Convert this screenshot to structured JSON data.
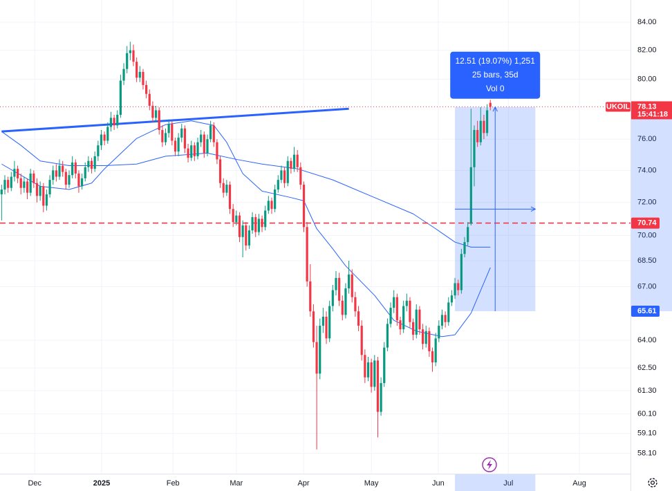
{
  "chart_data": {
    "type": "candlestick",
    "symbol": "UKOIL",
    "countdown": "15:41:18",
    "log_scale": true,
    "grid": true,
    "up_color": "#089981",
    "down_color": "#f23645",
    "xlim": [
      -0.5,
      195.6
    ],
    "xticks": [
      {
        "value": 10.3,
        "label": "Dec"
      },
      {
        "value": 31.1,
        "label": "2025",
        "bold": true
      },
      {
        "value": 53.3,
        "label": "Feb"
      },
      {
        "value": 73.0,
        "label": "Mar"
      },
      {
        "value": 93.9,
        "label": "Apr"
      },
      {
        "value": 115.0,
        "label": "May"
      },
      {
        "value": 135.8,
        "label": "Jun"
      },
      {
        "value": 157.6,
        "label": "Jul"
      },
      {
        "value": 179.7,
        "label": "Aug"
      }
    ],
    "ylim": [
      57.1,
      85.6
    ],
    "yticks": [
      {
        "value": 84,
        "label": "84.00"
      },
      {
        "value": 82,
        "label": "82.00"
      },
      {
        "value": 80,
        "label": "80.00"
      },
      {
        "value": 76,
        "label": "76.00"
      },
      {
        "value": 74,
        "label": "74.00"
      },
      {
        "value": 72,
        "label": "72.00"
      },
      {
        "value": 70,
        "label": "70.00"
      },
      {
        "value": 68.5,
        "label": "68.50"
      },
      {
        "value": 67,
        "label": "67.00"
      },
      {
        "value": 64,
        "label": "64.00"
      },
      {
        "value": 62.5,
        "label": "62.50"
      },
      {
        "value": 61.3,
        "label": "61.30"
      },
      {
        "value": 60.1,
        "label": "60.10"
      },
      {
        "value": 59.1,
        "label": "59.10"
      },
      {
        "value": 58.1,
        "label": "58.10"
      }
    ],
    "ohlc": [
      [
        72.5,
        73.1,
        70.9,
        72.8
      ],
      [
        72.8,
        73.7,
        72.5,
        73.4
      ],
      [
        73.4,
        73.6,
        72.6,
        72.9
      ],
      [
        72.9,
        73.9,
        72.7,
        73.6
      ],
      [
        73.6,
        74.6,
        73.3,
        74.1
      ],
      [
        74.1,
        74.3,
        73.2,
        73.5
      ],
      [
        73.5,
        73.8,
        72.5,
        72.9
      ],
      [
        72.9,
        73.6,
        72.6,
        73.3
      ],
      [
        73.3,
        73.5,
        72.2,
        72.6
      ],
      [
        72.6,
        74.1,
        72.4,
        73.8
      ],
      [
        73.8,
        74.0,
        72.9,
        73.2
      ],
      [
        73.2,
        73.5,
        72.0,
        72.4
      ],
      [
        72.4,
        73.3,
        72.1,
        73.0
      ],
      [
        73.0,
        73.2,
        71.4,
        71.8
      ],
      [
        71.8,
        72.8,
        71.5,
        72.5
      ],
      [
        72.5,
        73.7,
        72.3,
        73.4
      ],
      [
        73.4,
        74.3,
        73.1,
        74.0
      ],
      [
        74.0,
        74.4,
        73.3,
        73.6
      ],
      [
        73.6,
        74.7,
        73.4,
        74.3
      ],
      [
        74.3,
        74.6,
        73.6,
        73.9
      ],
      [
        73.9,
        74.1,
        72.8,
        73.1
      ],
      [
        73.1,
        74.0,
        72.9,
        73.7
      ],
      [
        73.7,
        74.9,
        73.5,
        74.5
      ],
      [
        74.5,
        74.7,
        73.5,
        73.8
      ],
      [
        73.8,
        74.0,
        72.6,
        73.0
      ],
      [
        73.0,
        73.8,
        72.8,
        73.5
      ],
      [
        73.5,
        74.5,
        73.3,
        74.2
      ],
      [
        74.2,
        74.9,
        73.9,
        74.6
      ],
      [
        74.6,
        74.8,
        73.8,
        74.1
      ],
      [
        74.1,
        75.2,
        73.9,
        74.9
      ],
      [
        74.9,
        75.9,
        74.6,
        75.6
      ],
      [
        75.6,
        76.6,
        75.3,
        76.3
      ],
      [
        76.3,
        76.5,
        75.6,
        75.9
      ],
      [
        75.9,
        77.1,
        75.7,
        76.8
      ],
      [
        76.8,
        77.8,
        76.5,
        77.4
      ],
      [
        77.4,
        77.6,
        76.6,
        76.9
      ],
      [
        76.9,
        77.9,
        76.7,
        77.6
      ],
      [
        77.6,
        80.3,
        77.4,
        79.9
      ],
      [
        79.9,
        81.1,
        79.6,
        80.7
      ],
      [
        80.7,
        82.3,
        80.4,
        81.8
      ],
      [
        81.8,
        82.6,
        81.3,
        82.0
      ],
      [
        82.0,
        82.4,
        80.9,
        81.2
      ],
      [
        81.2,
        81.5,
        79.8,
        80.1
      ],
      [
        80.1,
        80.9,
        79.8,
        80.5
      ],
      [
        80.5,
        80.7,
        79.3,
        79.6
      ],
      [
        79.6,
        79.9,
        78.7,
        79.0
      ],
      [
        79.0,
        79.3,
        77.9,
        78.2
      ],
      [
        78.2,
        78.5,
        77.1,
        77.4
      ],
      [
        77.4,
        78.2,
        77.1,
        77.9
      ],
      [
        77.9,
        78.1,
        76.3,
        76.6
      ],
      [
        76.6,
        76.9,
        75.5,
        75.8
      ],
      [
        75.8,
        76.7,
        75.6,
        76.4
      ],
      [
        76.4,
        77.3,
        76.1,
        77.0
      ],
      [
        77.0,
        77.2,
        75.6,
        75.9
      ],
      [
        75.9,
        76.1,
        74.9,
        75.2
      ],
      [
        75.2,
        76.4,
        74.9,
        76.1
      ],
      [
        76.1,
        77.0,
        75.8,
        76.7
      ],
      [
        76.7,
        76.9,
        75.1,
        75.4
      ],
      [
        75.4,
        75.7,
        74.5,
        74.8
      ],
      [
        74.8,
        75.9,
        74.6,
        75.6
      ],
      [
        75.6,
        75.8,
        74.6,
        74.9
      ],
      [
        74.9,
        76.1,
        74.7,
        75.8
      ],
      [
        75.8,
        76.6,
        75.5,
        76.3
      ],
      [
        76.3,
        76.5,
        74.8,
        75.1
      ],
      [
        75.1,
        76.3,
        74.9,
        76.0
      ],
      [
        76.0,
        77.2,
        75.8,
        76.9
      ],
      [
        76.9,
        77.1,
        75.5,
        75.8
      ],
      [
        75.8,
        76.0,
        74.4,
        74.7
      ],
      [
        74.7,
        74.9,
        72.9,
        73.2
      ],
      [
        73.2,
        73.5,
        72.3,
        72.6
      ],
      [
        72.6,
        73.4,
        72.4,
        73.1
      ],
      [
        73.1,
        73.3,
        71.3,
        71.6
      ],
      [
        71.6,
        71.9,
        70.5,
        70.8
      ],
      [
        70.8,
        71.5,
        70.6,
        71.2
      ],
      [
        71.2,
        71.4,
        69.6,
        69.9
      ],
      [
        69.9,
        70.9,
        68.7,
        70.6
      ],
      [
        70.6,
        70.8,
        69.1,
        69.4
      ],
      [
        69.4,
        70.6,
        69.2,
        70.3
      ],
      [
        70.3,
        71.4,
        70.1,
        71.1
      ],
      [
        71.1,
        71.3,
        69.9,
        70.2
      ],
      [
        70.2,
        71.3,
        70.0,
        71.0
      ],
      [
        71.0,
        71.2,
        70.2,
        70.5
      ],
      [
        70.5,
        71.8,
        70.3,
        71.5
      ],
      [
        71.5,
        72.4,
        71.3,
        72.1
      ],
      [
        72.1,
        72.3,
        71.3,
        71.6
      ],
      [
        71.6,
        73.1,
        71.4,
        72.8
      ],
      [
        72.8,
        73.7,
        72.6,
        73.4
      ],
      [
        73.4,
        74.3,
        73.2,
        74.0
      ],
      [
        74.0,
        74.2,
        72.9,
        73.2
      ],
      [
        73.2,
        74.9,
        73.0,
        74.6
      ],
      [
        74.6,
        74.8,
        73.8,
        74.1
      ],
      [
        74.1,
        75.5,
        73.9,
        75.0
      ],
      [
        75.0,
        75.3,
        73.9,
        74.2
      ],
      [
        74.2,
        74.5,
        72.8,
        73.1
      ],
      [
        73.1,
        73.3,
        70.2,
        70.5
      ],
      [
        70.5,
        70.8,
        67.0,
        67.3
      ],
      [
        67.3,
        68.3,
        65.3,
        65.6
      ],
      [
        65.6,
        66.0,
        63.6,
        63.9
      ],
      [
        63.9,
        64.8,
        58.3,
        62.2
      ],
      [
        62.2,
        65.2,
        61.9,
        64.8
      ],
      [
        64.8,
        65.8,
        64.4,
        65.3
      ],
      [
        65.3,
        65.6,
        63.8,
        64.1
      ],
      [
        64.1,
        66.2,
        63.9,
        65.9
      ],
      [
        65.9,
        67.1,
        65.6,
        66.8
      ],
      [
        66.8,
        67.9,
        66.5,
        67.5
      ],
      [
        67.5,
        67.8,
        65.9,
        66.2
      ],
      [
        66.2,
        66.5,
        65.1,
        65.4
      ],
      [
        65.4,
        67.2,
        65.2,
        66.9
      ],
      [
        66.9,
        68.5,
        66.6,
        67.7
      ],
      [
        67.7,
        68.0,
        66.1,
        66.4
      ],
      [
        66.4,
        66.7,
        65.3,
        65.6
      ],
      [
        65.6,
        65.9,
        64.5,
        64.8
      ],
      [
        64.8,
        65.1,
        62.9,
        63.2
      ],
      [
        63.2,
        63.5,
        61.7,
        62.0
      ],
      [
        62.0,
        63.1,
        61.8,
        62.8
      ],
      [
        62.8,
        63.0,
        61.2,
        61.5
      ],
      [
        61.5,
        63.2,
        61.3,
        62.9
      ],
      [
        62.9,
        63.1,
        58.9,
        60.2
      ],
      [
        60.2,
        62.0,
        60.0,
        61.7
      ],
      [
        61.7,
        63.9,
        61.5,
        63.6
      ],
      [
        63.6,
        65.2,
        63.4,
        64.9
      ],
      [
        64.9,
        66.1,
        64.7,
        65.8
      ],
      [
        65.8,
        66.8,
        65.5,
        66.4
      ],
      [
        66.4,
        66.6,
        64.8,
        65.1
      ],
      [
        65.1,
        65.3,
        64.3,
        64.6
      ],
      [
        64.6,
        66.2,
        64.4,
        65.9
      ],
      [
        65.9,
        66.6,
        65.6,
        66.2
      ],
      [
        66.2,
        66.4,
        64.7,
        65.0
      ],
      [
        65.0,
        65.2,
        64.0,
        64.3
      ],
      [
        64.3,
        66.0,
        64.1,
        65.7
      ],
      [
        65.7,
        65.9,
        64.3,
        64.6
      ],
      [
        64.6,
        64.9,
        63.5,
        63.8
      ],
      [
        63.8,
        64.8,
        63.6,
        64.5
      ],
      [
        64.5,
        64.7,
        63.1,
        63.4
      ],
      [
        63.4,
        63.6,
        62.3,
        62.8
      ],
      [
        62.8,
        64.4,
        62.6,
        64.1
      ],
      [
        64.1,
        65.1,
        63.9,
        64.8
      ],
      [
        64.8,
        65.7,
        64.6,
        65.4
      ],
      [
        65.4,
        65.6,
        64.7,
        65.0
      ],
      [
        65.0,
        66.4,
        64.8,
        66.1
      ],
      [
        66.1,
        66.8,
        65.9,
        66.5
      ],
      [
        66.5,
        67.5,
        66.3,
        67.2
      ],
      [
        67.2,
        67.4,
        66.5,
        66.8
      ],
      [
        66.8,
        69.2,
        66.6,
        68.9
      ],
      [
        68.9,
        69.9,
        68.7,
        69.6
      ],
      [
        69.6,
        70.8,
        69.4,
        70.5
      ],
      [
        70.7,
        78.0,
        70.6,
        74.2
      ],
      [
        74.2,
        76.9,
        73.0,
        76.6
      ],
      [
        76.6,
        77.2,
        75.5,
        75.8
      ],
      [
        75.8,
        78.1,
        75.6,
        77.2
      ],
      [
        77.2,
        77.6,
        76.0,
        76.4
      ],
      [
        76.4,
        78.3,
        76.2,
        77.9
      ],
      [
        78.4,
        78.6,
        77.9,
        78.13
      ]
    ],
    "series": [
      {
        "color": "#2962ff",
        "x": [
          0,
          6,
          12,
          21,
          32,
          42,
          51,
          64,
          73,
          81,
          92,
          103,
          116,
          128,
          135,
          141,
          146,
          152
        ],
        "values": [
          76.5,
          75.6,
          74.6,
          74.3,
          74.3,
          74.4,
          74.9,
          75.1,
          74.7,
          74.4,
          74.1,
          73.4,
          72.3,
          71.3,
          70.4,
          69.6,
          69.3,
          69.3
        ]
      },
      {
        "color": "#2962ff",
        "x": [
          0,
          12,
          21,
          28,
          32,
          42,
          51,
          59,
          66,
          70,
          75,
          81,
          90,
          94,
          98,
          103,
          107,
          116,
          122,
          129,
          137,
          141,
          146,
          152
        ],
        "values": [
          74.4,
          73.0,
          72.8,
          73.2,
          74.1,
          76.05,
          76.95,
          77.2,
          76.9,
          75.8,
          73.8,
          72.7,
          72.3,
          72.1,
          70.4,
          69.2,
          68.2,
          66.5,
          65.1,
          64.5,
          64.2,
          64.3,
          65.5,
          68.1
        ]
      }
    ],
    "trend_line": {
      "color": "#2962ff",
      "x": [
        0,
        108
      ],
      "values": [
        76.5,
        78.0
      ]
    },
    "hline": {
      "value": 70.74,
      "color": "#f23645"
    },
    "last_price": 78.13,
    "measure": {
      "start": 141,
      "end": 166,
      "low": 65.61,
      "high": 78.12,
      "color": "#2962ff",
      "label_lines": [
        "12.51 (19.07%) 1,251",
        "25 bars, 35d",
        "Vol 0"
      ]
    }
  }
}
